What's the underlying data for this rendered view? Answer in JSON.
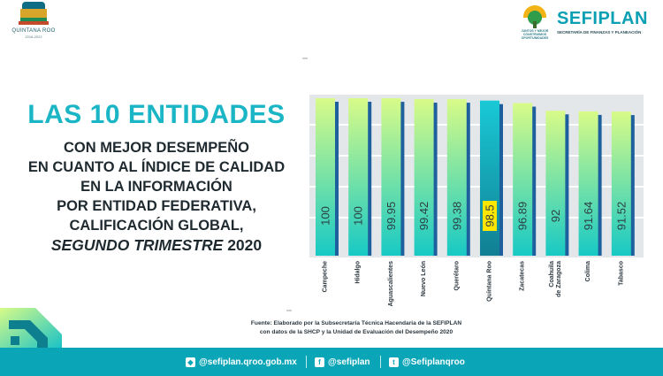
{
  "header": {
    "left_logo": {
      "name": "QUINTANA ROO",
      "years": "2016-2022"
    },
    "right_logo": {
      "brand": "SEFIPLAN",
      "subtitle": "SECRETARÍA DE FINANZAS Y PLANEACIÓN",
      "motto": "JUNTOS Y MEJOR CONSTRUIMOS OPORTUNIDADES"
    }
  },
  "headline": "LAS 10 ENTIDADES",
  "subtitle_lines": [
    "CON MEJOR DESEMPEÑO",
    "EN CUANTO AL ÍNDICE DE CALIDAD",
    "EN LA INFORMACIÓN",
    "POR ENTIDAD FEDERATIVA,",
    "CALIFICACIÓN GLOBAL,"
  ],
  "subtitle_last": {
    "italic": "SEGUNDO TRIMESTRE",
    "rest": " 2020"
  },
  "chart_data": {
    "type": "bar",
    "title": "",
    "xlabel": "",
    "ylabel": "",
    "ylim": [
      0,
      100
    ],
    "grid": true,
    "categories": [
      "Campeche",
      "Hidalgo",
      "Aguascalientes",
      "Nuevo León",
      "Querétaro",
      "Quintana Roo",
      "Zacatecas",
      "Coahuila de Zaragoza",
      "Colima",
      "Tabasco"
    ],
    "category_lines": [
      [
        "Campeche"
      ],
      [
        "Hidalgo"
      ],
      [
        "Aguascalientes"
      ],
      [
        "Nuevo León"
      ],
      [
        "Querétaro"
      ],
      [
        "Quintana Roo"
      ],
      [
        "Zacatecas"
      ],
      [
        "Coahuila",
        "de Zaragoza"
      ],
      [
        "Colima"
      ],
      [
        "Tabasco"
      ]
    ],
    "values": [
      100,
      100,
      99.95,
      99.42,
      99.38,
      98.5,
      96.89,
      92,
      91.64,
      91.52
    ],
    "labels": [
      "100",
      "100",
      "99.95",
      "99.42",
      "99.38",
      "98.5",
      "96.89",
      "92",
      "91.64",
      "91.52"
    ],
    "highlight_index": 5,
    "colors": {
      "bar_top": "#d8fb88",
      "bar_bottom": "#17c9c4",
      "shadow": "#1e5f9e",
      "highlight_top": "#19c9d6",
      "highlight_bottom": "#127f93",
      "highlight_label_bg": "#ffe600",
      "panel": "#e4e7e9",
      "grid": "#ffffff"
    }
  },
  "source": {
    "line1": "Fuente: Elaborado por la Subsecretaría Técnica Hacendaria de la SEFIPLAN",
    "line2": "con datos de la SHCP y la Unidad de Evaluación del Desempeño 2020"
  },
  "footer": {
    "web": "@sefiplan.qroo.gob.mx",
    "facebook": "@sefiplan",
    "twitter": "@Sefiplanqroo"
  }
}
